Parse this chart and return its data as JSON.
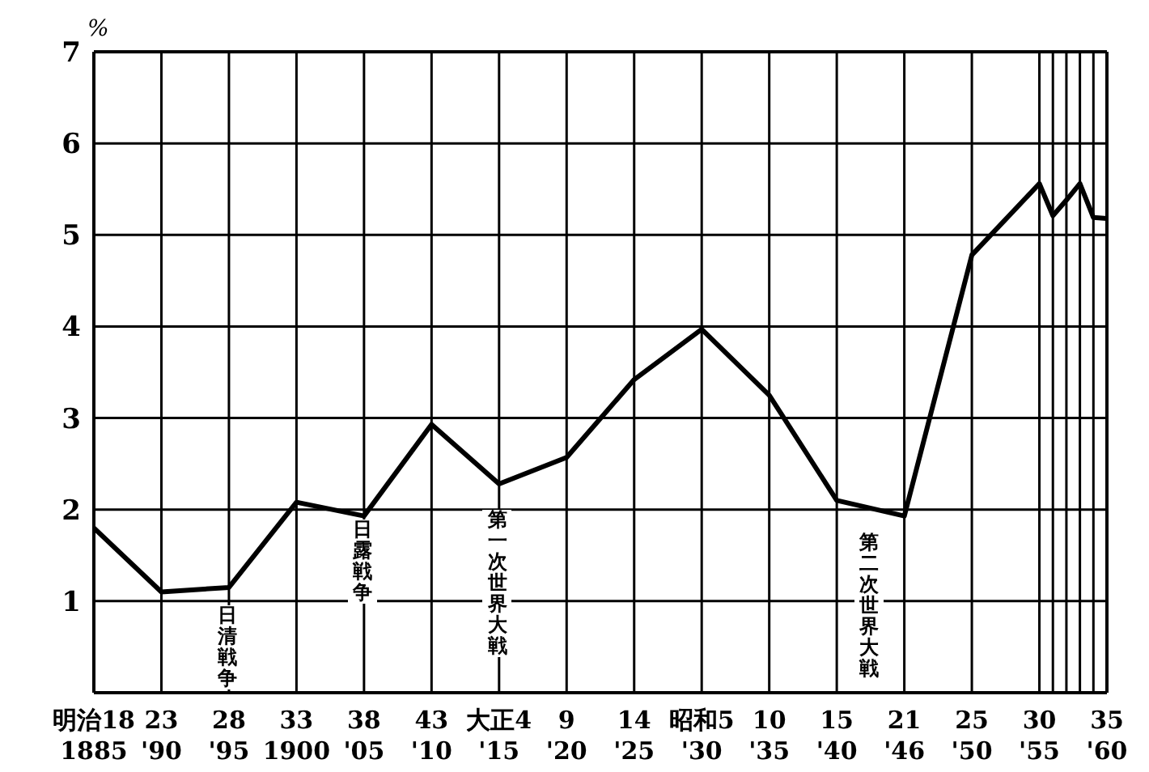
{
  "chart_data": {
    "type": "line",
    "ylabel": "%",
    "categories": [
      "明治18\n1885",
      "23\n'90",
      "28\n'95",
      "33\n1900",
      "38\n'05",
      "43\n'10",
      "大正4\n'15",
      "9\n'20",
      "14\n'25",
      "昭和5\n'30",
      "10\n'35",
      "15\n'40",
      "21\n'46",
      "25\n'50",
      "30\n'55",
      null,
      null,
      null,
      null,
      "35\n'60"
    ],
    "series": [
      {
        "color": "#000000",
        "values": [
          1.8,
          1.1,
          1.15,
          2.08,
          1.93,
          2.93,
          2.28,
          2.57,
          3.42,
          3.97,
          3.25,
          2.1,
          1.93,
          4.78,
          5.56,
          5.21,
          5.38,
          5.56,
          5.19,
          5.18
        ]
      }
    ],
    "ylim": [
      0,
      7
    ],
    "yticks": [
      1,
      2,
      3,
      4,
      5,
      6,
      7
    ],
    "grid": true,
    "marker": "none",
    "line_style": "solid",
    "annotations": [
      "日清戦争",
      "日露戦争",
      "第一次世界大戦",
      "第二次世界大戦"
    ]
  }
}
